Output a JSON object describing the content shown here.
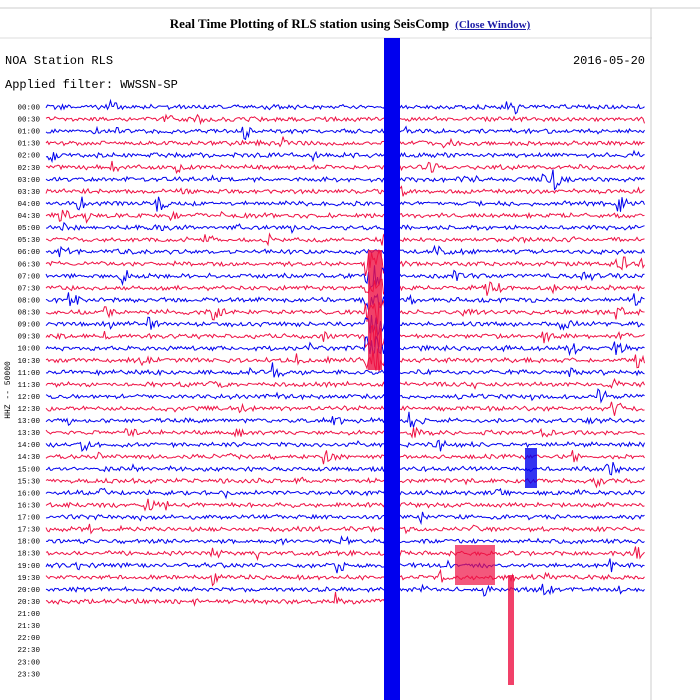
{
  "header": {
    "title": "Real Time Plotting of RLS station using SeisComp",
    "link": "(Close Window)"
  },
  "plot": {
    "station": "NOA Station RLS",
    "date": "2016-05-20",
    "filter": "Applied filter: WWSSN-SP",
    "channel_label": "HHZ -- 50000",
    "colors": [
      "#0000ee",
      "#ee1144"
    ],
    "times": [
      "00:00",
      "00:30",
      "01:00",
      "01:30",
      "02:00",
      "02:30",
      "03:00",
      "03:30",
      "04:00",
      "04:30",
      "05:00",
      "05:30",
      "06:00",
      "06:30",
      "07:00",
      "07:30",
      "08:00",
      "08:30",
      "09:00",
      "09:30",
      "10:00",
      "10:30",
      "11:00",
      "11:30",
      "12:00",
      "12:30",
      "13:00",
      "13:30",
      "14:00",
      "14:30",
      "15:00",
      "15:30",
      "16:00",
      "16:30",
      "17:00",
      "17:30",
      "18:00",
      "18:30",
      "19:00",
      "19:30",
      "20:00",
      "20:30",
      "21:00",
      "21:30",
      "22:00",
      "22:30",
      "23:00",
      "23:30"
    ]
  }
}
